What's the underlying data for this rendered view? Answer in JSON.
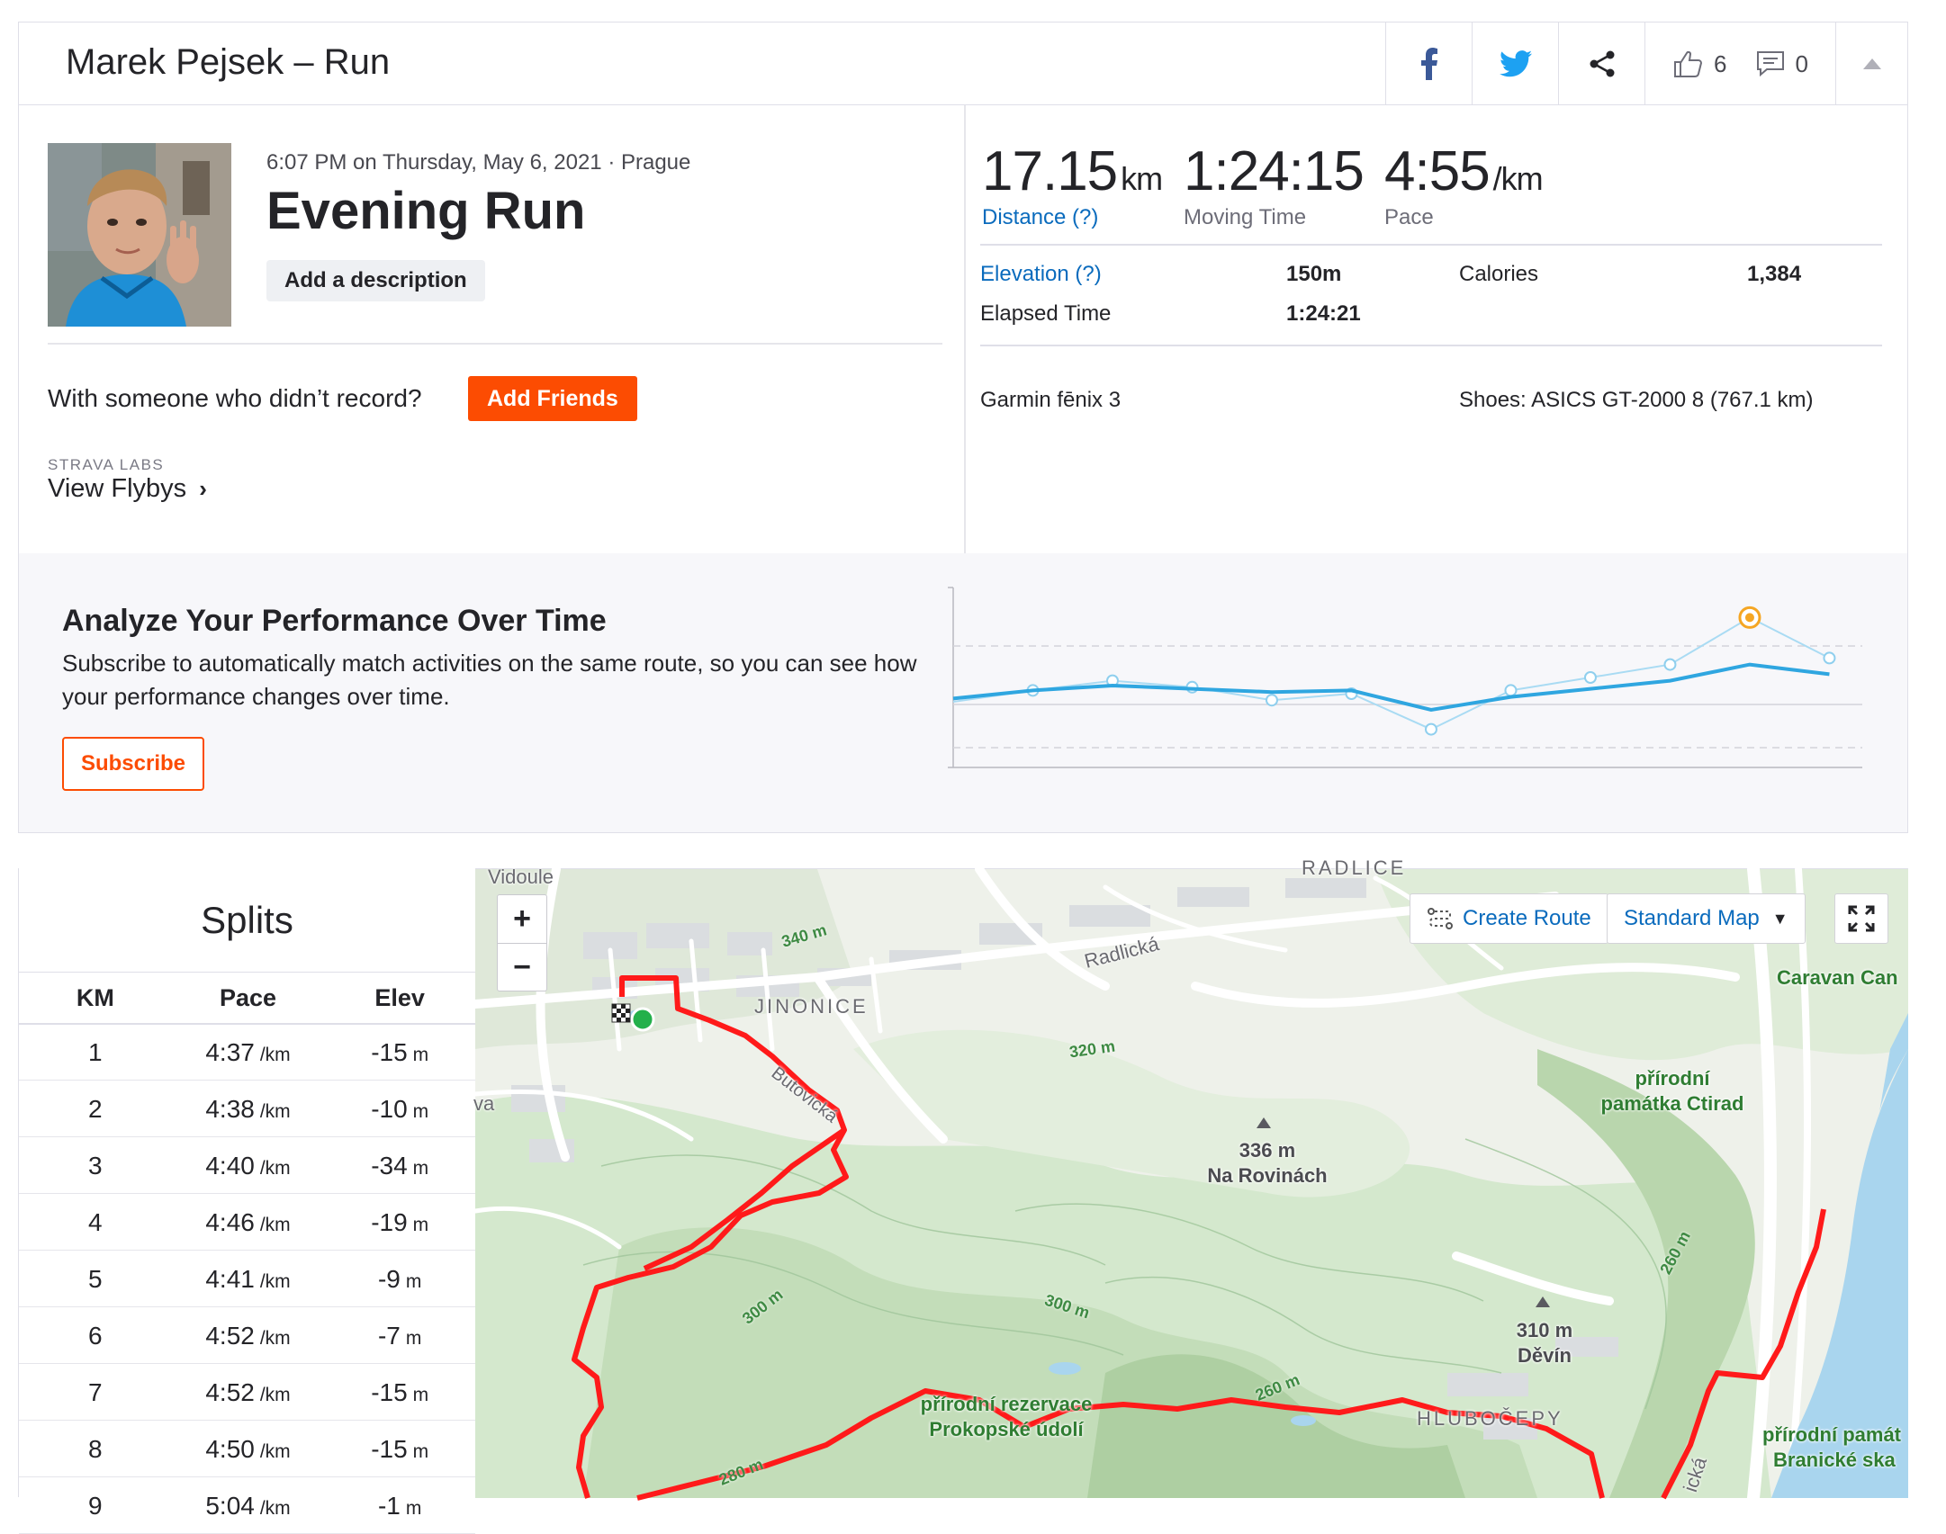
{
  "header": {
    "title": "Marek Pejsek – Run",
    "kudos_count": "6",
    "comments_count": "0"
  },
  "activity": {
    "meta": "6:07 PM on Thursday, May 6, 2021 · Prague",
    "title": "Evening Run",
    "add_description_label": "Add a description",
    "with_someone_text": "With someone who didn’t record?",
    "add_friends_label": "Add Friends",
    "labs_tag": "STRAVA LABS",
    "flybys_label": "View Flybys"
  },
  "stats": {
    "distance": {
      "value": "17.15",
      "unit": "km",
      "label": "Distance (?)"
    },
    "moving_time": {
      "value": "1:24:15",
      "label": "Moving Time"
    },
    "pace": {
      "value": "4:55",
      "unit": "/km",
      "label": "Pace"
    },
    "elevation_label": "Elevation (?)",
    "elevation_value": "150m",
    "calories_label": "Calories",
    "calories_value": "1,384",
    "elapsed_label": "Elapsed Time",
    "elapsed_value": "1:24:21",
    "device": "Garmin fēnix 3",
    "shoes": "Shoes: ASICS GT-2000 8 (767.1 km)"
  },
  "analyze": {
    "title": "Analyze Your Performance Over Time",
    "text": "Subscribe to automatically match activities on the same route, so you can see how your performance changes over time.",
    "subscribe_label": "Subscribe"
  },
  "trend_chart": {
    "type": "line",
    "series": [
      {
        "values": [
          0.35,
          0.42,
          0.48,
          0.44,
          0.36,
          0.4,
          0.18,
          0.42,
          0.5,
          0.58,
          0.87,
          0.62
        ]
      },
      {
        "values": [
          0.37,
          0.42,
          0.45,
          0.43,
          0.41,
          0.42,
          0.3,
          0.38,
          0.43,
          0.48,
          0.58,
          0.52
        ]
      }
    ],
    "highlight_index": 10,
    "colors": {
      "line": "#2fa6e0",
      "highlight": "#f5a623"
    }
  },
  "splits": {
    "title": "Splits",
    "headers": {
      "km": "KM",
      "pace": "Pace",
      "elev": "Elev"
    },
    "pace_unit": "/km",
    "elev_unit": "m",
    "rows": [
      {
        "km": "1",
        "pace": "4:37",
        "elev": "-15"
      },
      {
        "km": "2",
        "pace": "4:38",
        "elev": "-10"
      },
      {
        "km": "3",
        "pace": "4:40",
        "elev": "-34"
      },
      {
        "km": "4",
        "pace": "4:46",
        "elev": "-19"
      },
      {
        "km": "5",
        "pace": "4:41",
        "elev": "-9"
      },
      {
        "km": "6",
        "pace": "4:52",
        "elev": "-7"
      },
      {
        "km": "7",
        "pace": "4:52",
        "elev": "-15"
      },
      {
        "km": "8",
        "pace": "4:50",
        "elev": "-15"
      },
      {
        "km": "9",
        "pace": "5:04",
        "elev": "-1"
      }
    ]
  },
  "map": {
    "create_route_label": "Create Route",
    "style_label": "Standard Map",
    "zoom_in": "+",
    "zoom_out": "−",
    "labels": {
      "vidoule": "Vidoule",
      "radlice": "RADLICE",
      "jinonice": "JINONICE",
      "radlicka": "Radlická",
      "butovicka": "Butovická",
      "caravan": "Caravan Can",
      "ctirad_1": "přírodní",
      "ctirad_2": "památka Ctirad",
      "rovinach_1": "336 m",
      "rovinach_2": "Na Rovinách",
      "devin_1": "310 m",
      "devin_2": "Děvín",
      "prokop_1": "přírodní rezervace",
      "prokop_2": "Prokopské údolí",
      "hlubocepy": "HLUBOČEPY",
      "branicke_1": "přírodní památ",
      "branicke_2": "Branické ska",
      "va": "va",
      "c340": "340 m",
      "c320": "320 m",
      "c300a": "300 m",
      "c300b": "300 m",
      "c260a": "260 m",
      "c260b": "260 m",
      "c280": "280 m",
      "kicka": "ická"
    },
    "colors": {
      "route": "#ff1a1a",
      "start": "#23b04b",
      "water": "#a9d5ee",
      "park": "#cfe5c8"
    }
  }
}
